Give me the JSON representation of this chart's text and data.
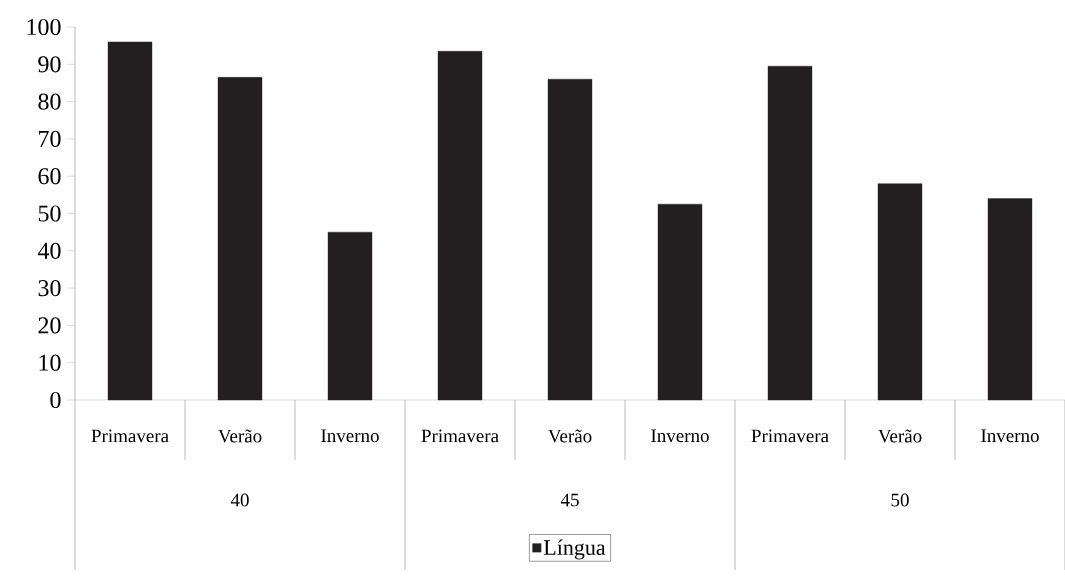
{
  "chart_data": {
    "type": "bar",
    "categories": [
      "Primavera",
      "Verão",
      "Inverno",
      "Primavera",
      "Verão",
      "Inverno",
      "Primavera",
      "Verão",
      "Inverno"
    ],
    "series": [
      {
        "name": "Língua",
        "color": "#231f20",
        "values": [
          96,
          86.5,
          45,
          93.5,
          86,
          52.5,
          89.5,
          58,
          54
        ]
      }
    ],
    "annotations": [
      "40",
      "45",
      "50"
    ],
    "ylim": [
      0,
      100
    ],
    "yticks": [
      0,
      10,
      20,
      30,
      40,
      50,
      60,
      70,
      80,
      90,
      100
    ],
    "grid": false,
    "legend": "bottom"
  }
}
